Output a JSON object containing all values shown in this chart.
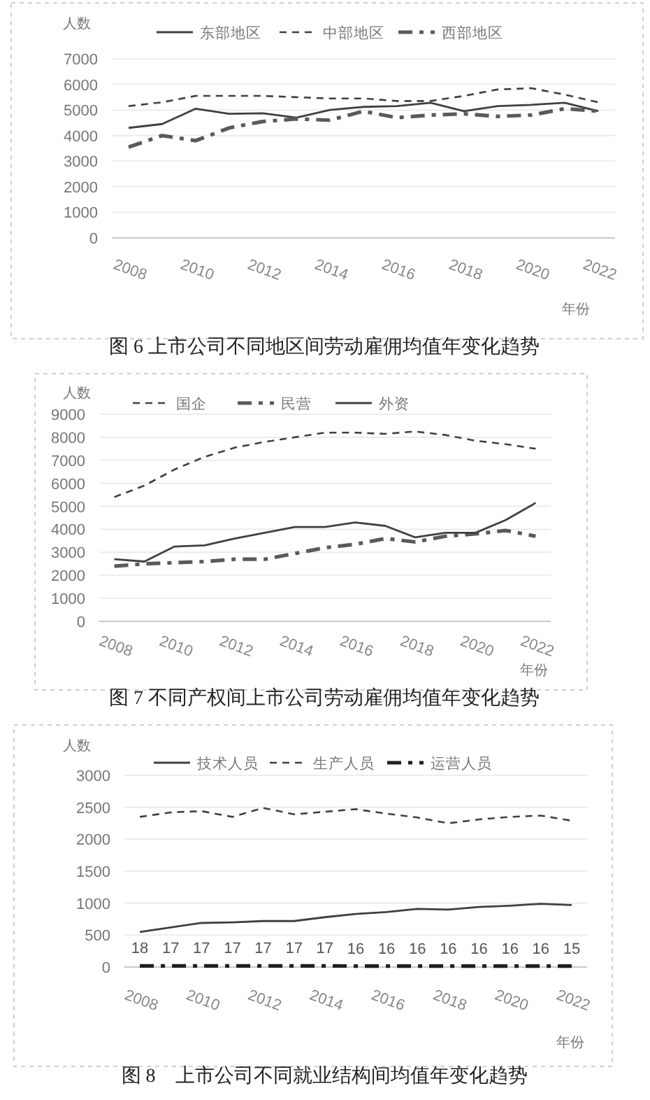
{
  "chart_data": [
    {
      "type": "line",
      "title": "图 6 上市公司不同地区间劳动雇佣均值年变化趋势",
      "ylabel": "人数",
      "xlabel": "年份",
      "categories": [
        "2008",
        null,
        "2010",
        null,
        "2012",
        null,
        "2014",
        null,
        "2016",
        null,
        "2018",
        null,
        "2020",
        null,
        "2022"
      ],
      "ylim": [
        0,
        7000
      ],
      "yticks": [
        0,
        1000,
        2000,
        3000,
        4000,
        5000,
        6000,
        7000
      ],
      "grid": "y",
      "legend": "top",
      "series": [
        {
          "name": "东部地区",
          "color": "#404040",
          "line_style": "solid",
          "values": [
            4300,
            4450,
            5050,
            4850,
            4870,
            4700,
            5000,
            5120,
            5150,
            5280,
            4950,
            5150,
            5200,
            5280,
            4950
          ]
        },
        {
          "name": "中部地区",
          "color": "#404040",
          "line_style": "dashed",
          "values": [
            5150,
            5300,
            5550,
            5550,
            5550,
            5500,
            5450,
            5450,
            5350,
            5350,
            5550,
            5800,
            5850,
            5600,
            5300
          ]
        },
        {
          "name": "西部地区",
          "color": "#5a5a5a",
          "line_style": "dashdot",
          "values": [
            3550,
            4000,
            3800,
            4300,
            4550,
            4650,
            4600,
            4950,
            4700,
            4800,
            4850,
            4750,
            4800,
            5050,
            4950
          ]
        }
      ]
    },
    {
      "type": "line",
      "title": "图 7 不同产权间上市公司劳动雇佣均值年变化趋势",
      "ylabel": "人数",
      "xlabel": "年份",
      "categories": [
        "2008",
        null,
        "2010",
        null,
        "2012",
        null,
        "2014",
        null,
        "2016",
        null,
        "2018",
        null,
        "2020",
        null,
        "2022"
      ],
      "ylim": [
        0,
        9000
      ],
      "yticks": [
        0,
        1000,
        2000,
        3000,
        4000,
        5000,
        6000,
        7000,
        8000,
        9000
      ],
      "grid": "y",
      "legend": "top",
      "series": [
        {
          "name": "国企",
          "color": "#404040",
          "line_style": "dashed",
          "values": [
            5400,
            5900,
            6600,
            7150,
            7550,
            7800,
            8000,
            8200,
            8200,
            8150,
            8250,
            8100,
            7850,
            7700,
            7500
          ]
        },
        {
          "name": "民营",
          "color": "#5a5a5a",
          "line_style": "dashdot",
          "values": [
            2400,
            2500,
            2550,
            2600,
            2700,
            2700,
            2950,
            3200,
            3350,
            3600,
            3450,
            3700,
            3800,
            3950,
            3700
          ]
        },
        {
          "name": "外资",
          "color": "#404040",
          "line_style": "solid",
          "values": [
            2700,
            2600,
            3250,
            3300,
            3600,
            3850,
            4100,
            4100,
            4300,
            4150,
            3650,
            3850,
            3850,
            4400,
            5150
          ]
        }
      ]
    },
    {
      "type": "line",
      "title": "图 8　上市公司不同就业结构间均值年变化趋势",
      "ylabel": "人数",
      "xlabel": "年份",
      "categories": [
        "2008",
        null,
        "2010",
        null,
        "2012",
        null,
        "2014",
        null,
        "2016",
        null,
        "2018",
        null,
        "2020",
        null,
        "2022"
      ],
      "ylim": [
        0,
        3000
      ],
      "yticks": [
        0,
        500,
        1000,
        1500,
        2000,
        2500,
        3000
      ],
      "grid": "y",
      "legend": "top",
      "series": [
        {
          "name": "技术人员",
          "color": "#404040",
          "line_style": "solid",
          "values": [
            550,
            620,
            690,
            700,
            720,
            720,
            780,
            830,
            860,
            910,
            900,
            940,
            960,
            990,
            970
          ]
        },
        {
          "name": "生产人员",
          "color": "#404040",
          "line_style": "dashed",
          "values": [
            2350,
            2420,
            2440,
            2350,
            2490,
            2390,
            2430,
            2470,
            2400,
            2340,
            2250,
            2310,
            2350,
            2370,
            2290
          ]
        },
        {
          "name": "运营人员",
          "color": "#202020",
          "line_style": "dashdot",
          "values": [
            18,
            17,
            17,
            17,
            17,
            17,
            17,
            16,
            16,
            16,
            16,
            16,
            16,
            16,
            15
          ],
          "value_labels": [
            "18",
            "17",
            "17",
            "17",
            "17",
            "17",
            "17",
            "16",
            "16",
            "16",
            "16",
            "16",
            "16",
            "16",
            "15"
          ]
        }
      ]
    }
  ]
}
